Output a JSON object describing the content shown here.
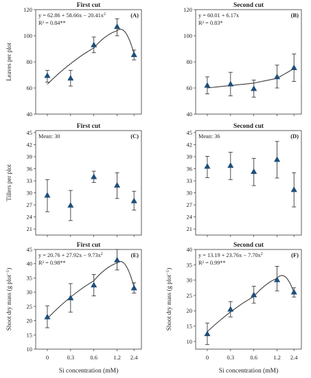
{
  "x_axis": {
    "label": "Si concentration (mM)",
    "categories": [
      "0",
      "0.3",
      "0.6",
      "1.2",
      "2.4"
    ]
  },
  "colors": {
    "marker": "#1f4e79",
    "line": "#3a3a3a",
    "frame": "#333333"
  },
  "chart_data": [
    {
      "type": "scatter",
      "panel": "(A)",
      "title": "First cut",
      "ylabel": "Leaves per plot",
      "ylim": [
        40,
        120
      ],
      "yticks": [
        40,
        60,
        80,
        100,
        120
      ],
      "categories": [
        "0",
        "0.3",
        "0.6",
        "1.2",
        "2.4"
      ],
      "values": [
        69.5,
        67.5,
        93,
        107,
        85.5
      ],
      "err_low": [
        64.5,
        61.5,
        87,
        100,
        81.5
      ],
      "err_high": [
        73.5,
        73.5,
        99,
        113,
        89
      ],
      "fit": {
        "type": "quadratic",
        "coef": [
          62.86,
          58.66,
          -20.41
        ]
      },
      "annotations": [
        "y = 62.86 + 58.66x − 20.41x",
        "R² = 0.84**"
      ],
      "eq_sup": "2"
    },
    {
      "type": "scatter",
      "panel": "(B)",
      "title": "Second cut",
      "ylabel": "",
      "ylim": [
        40,
        120
      ],
      "yticks": [
        40,
        60,
        80,
        100,
        120
      ],
      "categories": [
        "0",
        "0.3",
        "0.6",
        "1.2",
        "2.4"
      ],
      "values": [
        62,
        63,
        59.5,
        68.5,
        75.5
      ],
      "err_low": [
        55.5,
        54,
        53,
        60,
        65
      ],
      "err_high": [
        68.5,
        72,
        66,
        77.5,
        86
      ],
      "fit": {
        "type": "linear",
        "coef": [
          60.01,
          6.17
        ]
      },
      "annotations": [
        "y = 60.01 + 6.17x",
        "R² = 0.83*"
      ],
      "eq_sup": ""
    },
    {
      "type": "scatter",
      "panel": "(C)",
      "title": "First cut",
      "ylabel": "Tillers per plot",
      "ylim": [
        19.5,
        45.5
      ],
      "yticks": [
        21,
        24,
        27,
        30,
        33,
        36,
        39,
        42,
        45
      ],
      "categories": [
        "0",
        "0.3",
        "0.6",
        "1.2",
        "2.4"
      ],
      "values": [
        29.4,
        26.9,
        34,
        31.9,
        28
      ],
      "err_low": [
        25.3,
        23.1,
        32.6,
        28.6,
        25.7
      ],
      "err_high": [
        33.3,
        30.6,
        35.4,
        35,
        30.4
      ],
      "fit": null,
      "annotations": [
        "Mean: 30"
      ],
      "eq_sup": ""
    },
    {
      "type": "scatter",
      "panel": "(D)",
      "title": "Second cut",
      "ylabel": "",
      "ylim": [
        19.5,
        45.5
      ],
      "yticks": [
        21,
        24,
        27,
        30,
        33,
        36,
        39,
        42,
        45
      ],
      "categories": [
        "0",
        "0.3",
        "0.6",
        "1.2",
        "2.4"
      ],
      "values": [
        36.6,
        36.8,
        35.3,
        38.3,
        30.8
      ],
      "err_low": [
        33.8,
        33.3,
        31.8,
        33.7,
        26.5
      ],
      "err_high": [
        39.1,
        40.1,
        38.6,
        42.8,
        35
      ],
      "fit": null,
      "annotations": [
        "Mean: 36"
      ],
      "eq_sup": ""
    },
    {
      "type": "scatter",
      "panel": "(E)",
      "title": "First cut",
      "ylabel": "Shoot dry mass (g plot",
      "ylabel_sup": "−1",
      "ylabel_tail": ")",
      "ylim": [
        10,
        45
      ],
      "yticks": [
        10,
        15,
        20,
        25,
        30,
        35,
        40,
        45
      ],
      "categories": [
        "0",
        "0.3",
        "0.6",
        "1.2",
        "2.4"
      ],
      "values": [
        21.3,
        28,
        32.5,
        41.3,
        31.5
      ],
      "err_low": [
        17.5,
        23,
        28.7,
        37.8,
        29.7
      ],
      "err_high": [
        25.2,
        33,
        36.2,
        45,
        33.3
      ],
      "fit": {
        "type": "quadratic",
        "coef": [
          20.76,
          27.92,
          -9.73
        ]
      },
      "annotations": [
        "y = 20.76 + 27.92x − 9.73x",
        "R² = 0.98**"
      ],
      "eq_sup": "2"
    },
    {
      "type": "scatter",
      "panel": "(F)",
      "title": "Second cut",
      "ylabel": "Shoot dry mass (g plot",
      "ylabel_sup": "−1",
      "ylabel_tail": ")",
      "ylim": [
        7.5,
        40
      ],
      "yticks": [
        10,
        15,
        20,
        25,
        30,
        35,
        40
      ],
      "categories": [
        "0",
        "0.3",
        "0.6",
        "1.2",
        "2.4"
      ],
      "values": [
        12.5,
        20.5,
        25.2,
        30.1,
        26.1
      ],
      "err_low": [
        9,
        18,
        22.5,
        26.5,
        24.5
      ],
      "err_high": [
        16,
        23,
        28,
        34.5,
        27.5
      ],
      "fit": {
        "type": "quadratic",
        "coef": [
          13.19,
          23.76,
          -7.7
        ]
      },
      "annotations": [
        "y = 13.19 + 23.76x − 7.70x",
        "R² = 0.99**"
      ],
      "eq_sup": "2"
    }
  ]
}
